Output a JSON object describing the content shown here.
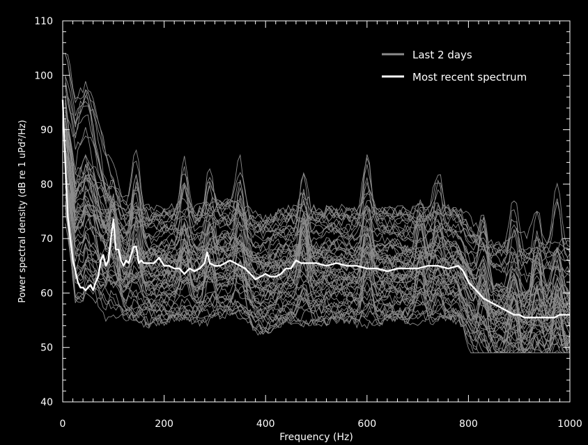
{
  "chart_data": {
    "type": "line",
    "title": "",
    "xlabel": "Frequency (Hz)",
    "ylabel": "Power spectral density (dB re 1 uPd²/Hz)",
    "xlim": [
      0,
      1000
    ],
    "ylim": [
      40,
      110
    ],
    "x_ticks": [
      "0",
      "200",
      "400",
      "600",
      "800",
      "1000"
    ],
    "y_ticks": [
      "40",
      "50",
      "60",
      "70",
      "80",
      "90",
      "100",
      "110"
    ],
    "x_minor_step": 20,
    "y_minor_step": 2,
    "grid": false,
    "legend_position": "top-right",
    "legend": [
      "Last 2 days",
      "Most recent spectrum"
    ],
    "colors": {
      "background": "#000000",
      "history": "#8c8c8c",
      "recent": "#ffffff",
      "axes": "#ffffff"
    },
    "series": [
      {
        "name": "Most recent spectrum",
        "x": [
          0,
          5,
          10,
          15,
          20,
          25,
          30,
          35,
          40,
          45,
          50,
          55,
          60,
          65,
          70,
          75,
          80,
          85,
          90,
          95,
          100,
          105,
          110,
          115,
          120,
          125,
          130,
          135,
          140,
          145,
          150,
          155,
          160,
          170,
          180,
          190,
          200,
          210,
          220,
          230,
          240,
          250,
          260,
          270,
          280,
          285,
          290,
          300,
          310,
          320,
          330,
          340,
          350,
          360,
          370,
          380,
          390,
          400,
          410,
          420,
          430,
          440,
          450,
          460,
          470,
          480,
          490,
          500,
          520,
          540,
          560,
          580,
          600,
          620,
          640,
          660,
          680,
          700,
          720,
          740,
          760,
          780,
          790,
          800,
          810,
          820,
          830,
          840,
          850,
          860,
          870,
          880,
          890,
          900,
          910,
          920,
          930,
          940,
          950,
          960,
          970,
          980,
          990,
          1000
        ],
        "y": [
          95.5,
          84,
          74,
          70,
          66,
          64,
          62,
          61,
          61,
          60.5,
          61,
          61.5,
          60.5,
          62,
          63,
          66,
          67,
          65,
          66,
          70,
          73.5,
          68,
          68,
          66,
          65,
          66,
          65.5,
          67,
          68.5,
          68.5,
          65.5,
          66,
          65.5,
          65.5,
          65.5,
          66.5,
          65,
          65,
          64.5,
          64.5,
          63.5,
          64.5,
          64,
          64.5,
          65.5,
          67.5,
          65.5,
          65,
          65,
          65.5,
          66,
          65.5,
          65,
          64.5,
          63.5,
          62.5,
          63,
          63.5,
          63,
          63,
          63.5,
          64.5,
          64.5,
          66,
          65.5,
          65.5,
          65.5,
          65.5,
          65,
          65.5,
          65,
          65,
          64.5,
          64.5,
          64,
          64.5,
          64.5,
          64.5,
          65,
          65,
          64.5,
          65,
          64,
          62,
          61,
          60,
          59,
          58.5,
          58,
          57.5,
          57,
          56.5,
          56,
          56,
          55.5,
          55.5,
          55.5,
          55.5,
          55.5,
          55.5,
          55.5,
          56,
          56,
          56
        ]
      }
    ],
    "history_count": 60
  }
}
